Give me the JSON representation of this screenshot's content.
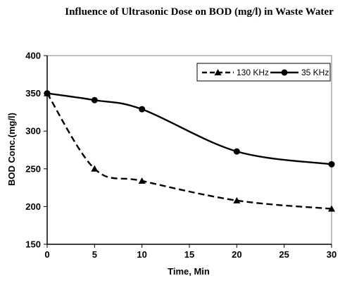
{
  "chart_data": {
    "type": "line",
    "title": "Influence of Ultrasonic Dose on BOD (mg/l) in Waste Water",
    "xlabel": "Time, Min",
    "ylabel": "BOD Conc.(mg/l)",
    "xlim": [
      0,
      30
    ],
    "ylim": [
      150,
      400
    ],
    "xticks": [
      0,
      5,
      10,
      15,
      20,
      25,
      30
    ],
    "yticks": [
      150,
      200,
      250,
      300,
      350,
      400
    ],
    "grid": false,
    "legend_position": "top-right",
    "series": [
      {
        "name": "130 KHz",
        "style": "dashed",
        "marker": "triangle",
        "color": "#000000",
        "x": [
          0,
          5,
          10,
          20,
          30
        ],
        "y": [
          350,
          250,
          234,
          208,
          197
        ]
      },
      {
        "name": "35 KHz",
        "style": "solid",
        "marker": "circle",
        "color": "#000000",
        "x": [
          0,
          5,
          10,
          20,
          30
        ],
        "y": [
          350,
          341,
          329,
          273,
          256
        ]
      }
    ]
  }
}
